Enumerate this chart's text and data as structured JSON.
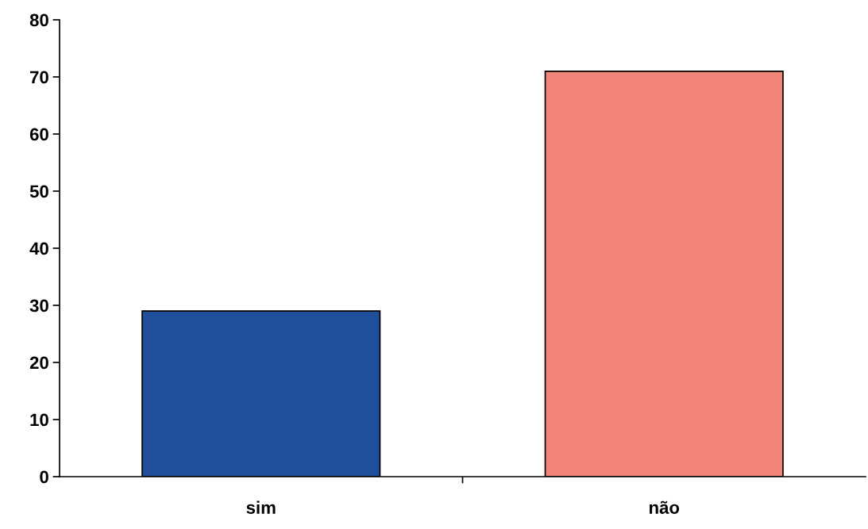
{
  "chart_data": {
    "type": "bar",
    "categories": [
      "sim",
      "não"
    ],
    "values": [
      29,
      71
    ],
    "colors": [
      "#1f4e9a",
      "#f2857a"
    ],
    "ylim": [
      0,
      80
    ],
    "yticks": [
      0,
      10,
      20,
      30,
      40,
      50,
      60,
      70,
      80
    ],
    "grid": false,
    "legend": false
  }
}
